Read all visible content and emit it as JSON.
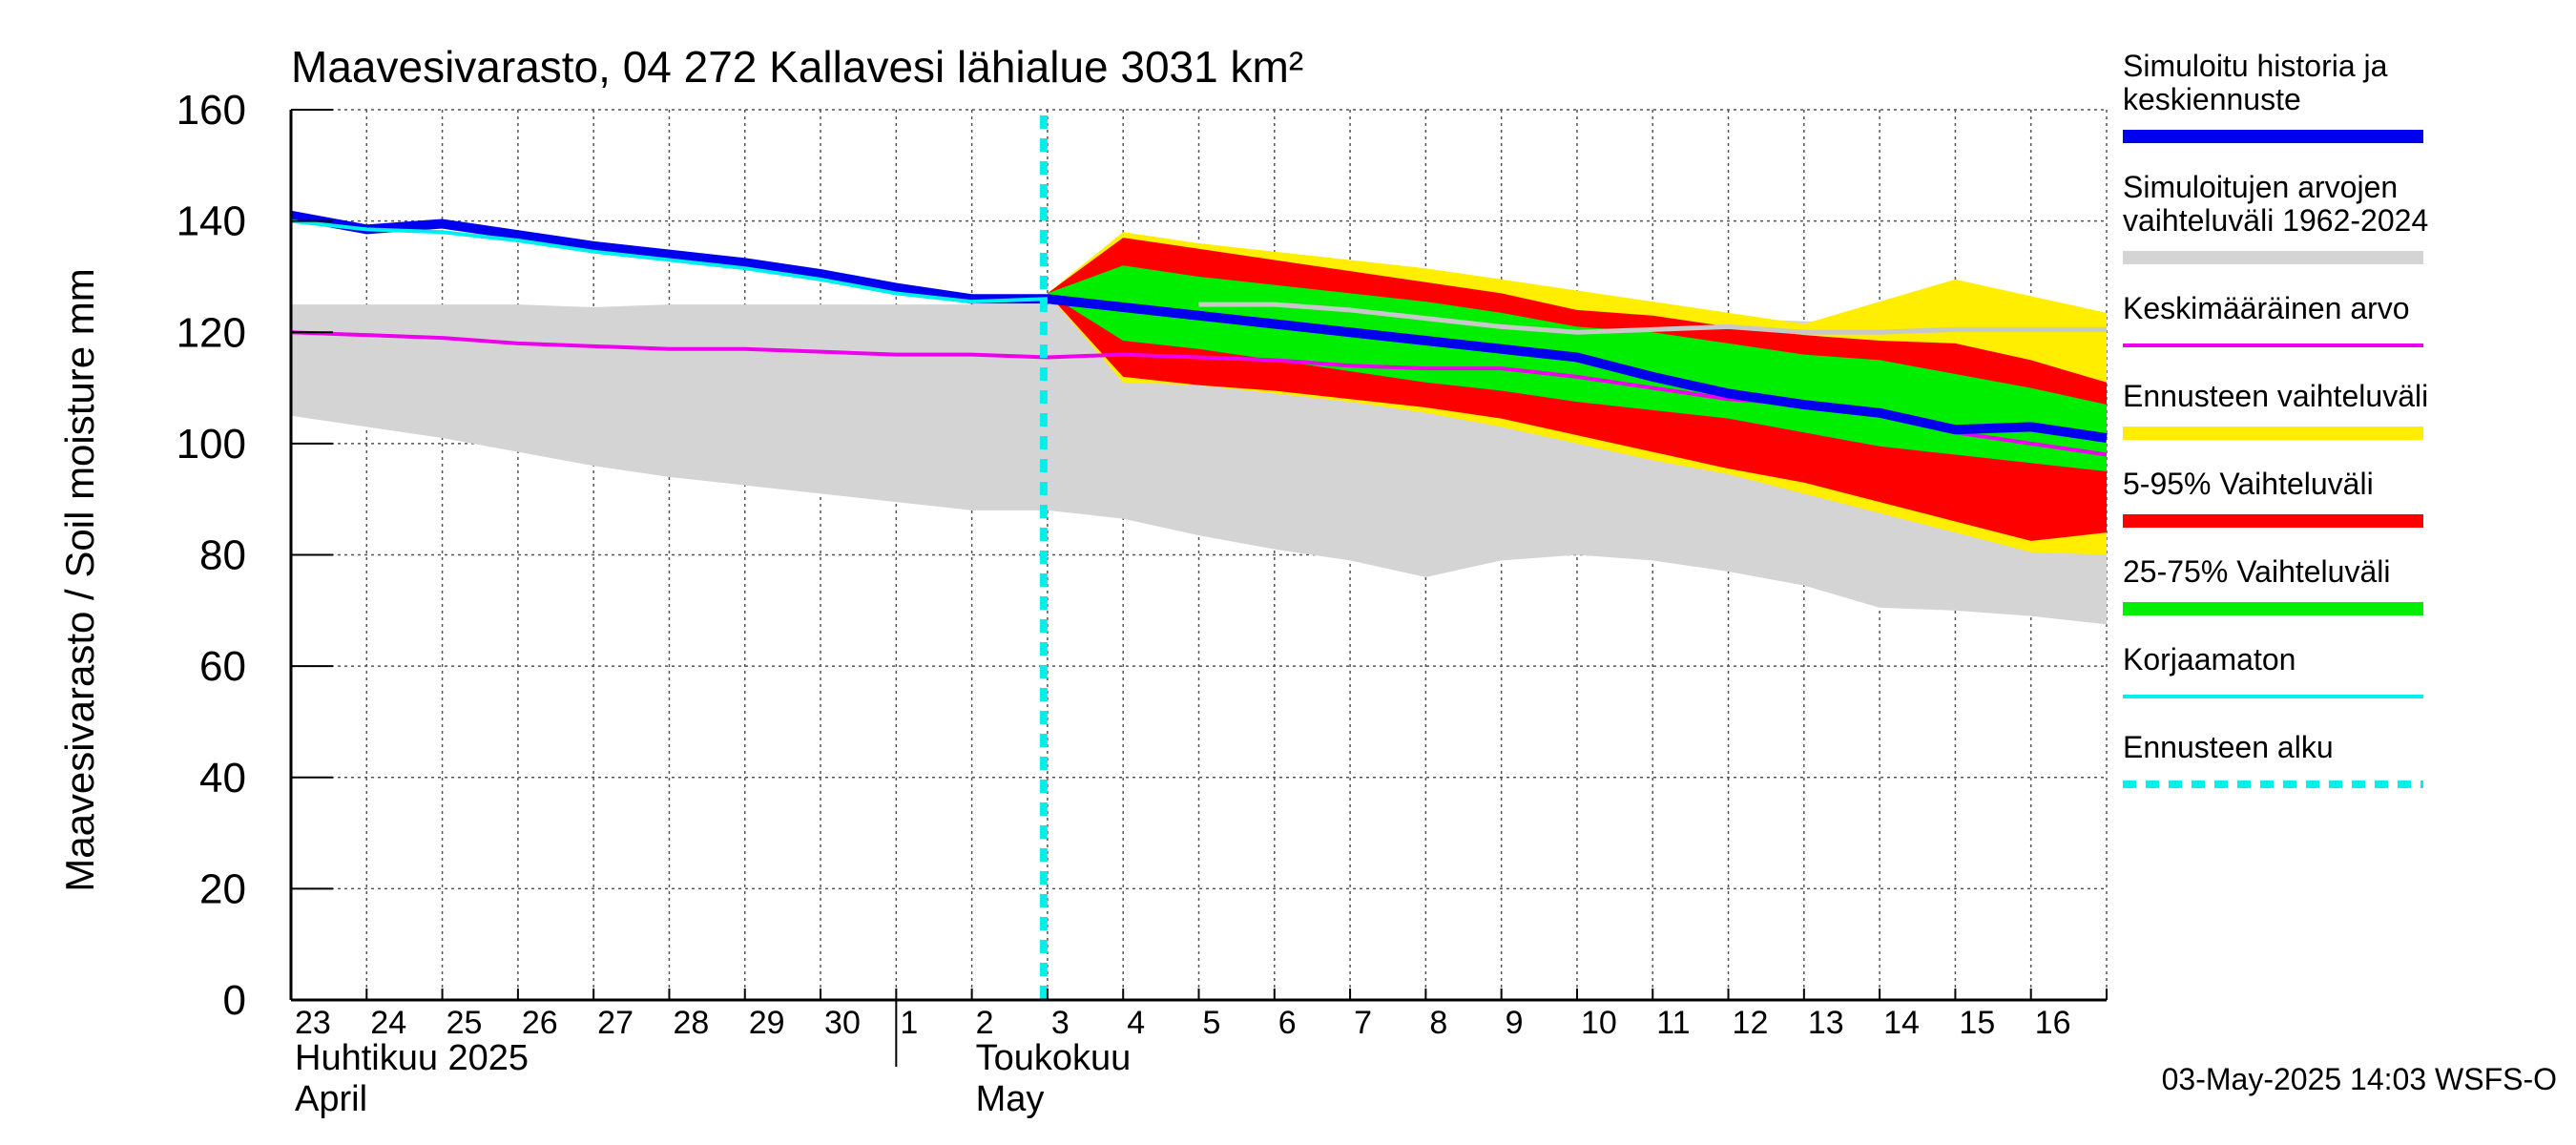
{
  "chart_data": {
    "type": "area",
    "title": "Maavesivarasto, 04 272 Kallavesi lähialue 3031 km²",
    "ylabel": "Maavesivarasto / Soil moisture   mm",
    "ylim": [
      0,
      160
    ],
    "yticks": [
      0,
      20,
      40,
      60,
      80,
      100,
      120,
      140,
      160
    ],
    "grid": true,
    "legend_placement": "right",
    "x_day_labels": [
      "23",
      "24",
      "25",
      "26",
      "27",
      "28",
      "29",
      "30",
      "1",
      "2",
      "3",
      "4",
      "5",
      "6",
      "7",
      "8",
      "9",
      "10",
      "11",
      "12",
      "13",
      "14",
      "15",
      "16"
    ],
    "month_labels": [
      {
        "line1": "Huhtikuu  2025",
        "line2": "April"
      },
      {
        "line1": "Toukokuu",
        "line2": "May"
      }
    ],
    "forecast_start": "2025-05-03",
    "dates": [
      "2025-04-23",
      "2025-04-24",
      "2025-04-25",
      "2025-04-26",
      "2025-04-27",
      "2025-04-28",
      "2025-04-29",
      "2025-04-30",
      "2025-05-01",
      "2025-05-02",
      "2025-05-03",
      "2025-05-04",
      "2025-05-05",
      "2025-05-06",
      "2025-05-07",
      "2025-05-08",
      "2025-05-09",
      "2025-05-10",
      "2025-05-11",
      "2025-05-12",
      "2025-05-13",
      "2025-05-14",
      "2025-05-15",
      "2025-05-16",
      "2025-05-17"
    ],
    "series": [
      {
        "name": "Simuloitujen arvojen vaihteluväli 1962-2024",
        "role": "range",
        "color": "#d4d4d4",
        "upper": [
          125,
          125,
          125,
          125,
          124.5,
          125,
          125,
          125,
          125,
          125,
          125,
          125,
          125,
          125,
          125,
          124.5,
          124.5,
          124.5,
          124,
          122.5,
          122,
          121.5,
          122,
          122,
          122
        ],
        "lower": [
          105,
          103,
          101,
          98.5,
          96,
          94,
          92.5,
          91,
          89.5,
          88,
          88,
          86.5,
          83.5,
          81,
          79,
          76,
          79,
          80,
          79,
          77,
          74.5,
          70.5,
          70,
          69,
          67.5
        ]
      },
      {
        "name": "Ennusteen vaihteluväli",
        "role": "range",
        "color": "#ffee00",
        "upper": [
          null,
          null,
          null,
          null,
          null,
          null,
          null,
          null,
          null,
          null,
          127,
          138,
          136,
          134.5,
          133,
          131.5,
          129.5,
          127.5,
          125.5,
          123.5,
          121.5,
          125.5,
          129.5,
          126.5,
          123.5
        ],
        "lower": [
          null,
          null,
          null,
          null,
          null,
          null,
          null,
          null,
          null,
          null,
          127,
          111,
          110.5,
          109,
          107.5,
          105.5,
          103,
          100,
          97,
          94.5,
          91,
          87.5,
          84,
          80.5,
          80
        ]
      },
      {
        "name": "5-95% Vaihteluväli",
        "role": "range",
        "color": "#ff0000",
        "upper": [
          null,
          null,
          null,
          null,
          null,
          null,
          null,
          null,
          null,
          null,
          127,
          137,
          135,
          133,
          131,
          129,
          127,
          124,
          123,
          121,
          119.5,
          118.5,
          118,
          115,
          111
        ],
        "lower": [
          null,
          null,
          null,
          null,
          null,
          null,
          null,
          null,
          null,
          null,
          127,
          112,
          110.5,
          109.5,
          108,
          106.5,
          104.5,
          101.5,
          98.5,
          95.5,
          93,
          89.5,
          86,
          82.5,
          84
        ]
      },
      {
        "name": "25-75% Vaihteluväli",
        "role": "range",
        "color": "#00ee00",
        "upper": [
          null,
          null,
          null,
          null,
          null,
          null,
          null,
          null,
          null,
          null,
          127,
          132,
          130,
          128.5,
          127,
          125.5,
          123.5,
          121,
          120,
          118,
          116,
          115,
          112.5,
          110,
          107
        ],
        "lower": [
          null,
          null,
          null,
          null,
          null,
          null,
          null,
          null,
          null,
          null,
          127,
          118.5,
          117,
          115,
          113,
          111,
          109.5,
          107.5,
          106,
          104.5,
          102,
          99.5,
          98,
          96.5,
          95
        ]
      },
      {
        "name": "Keskimääräinen arvo",
        "role": "line",
        "color": "#ee00ee",
        "width": 4,
        "values": [
          120,
          119.5,
          119,
          118,
          117.5,
          117,
          117,
          116.5,
          116,
          116,
          115.5,
          116,
          115.5,
          115,
          114,
          113.5,
          113.5,
          112,
          110,
          108,
          107,
          105,
          102,
          100,
          98
        ]
      },
      {
        "name": "Simuloitu historia ja keskiennuste",
        "role": "line",
        "color": "#0000ee",
        "width": 10,
        "values": [
          141,
          138.5,
          139.5,
          137.5,
          135.5,
          134,
          132.5,
          130.5,
          128,
          126,
          126,
          124.5,
          123,
          121.5,
          120,
          118.5,
          117,
          115.5,
          112,
          109,
          107,
          105.5,
          102.5,
          103,
          101
        ]
      },
      {
        "name": "Korjaamaton",
        "role": "line",
        "color": "#00eeee",
        "width": 4,
        "values": [
          140,
          138.5,
          138,
          136.5,
          134.5,
          133,
          131.5,
          129.5,
          127,
          125.5,
          126,
          null,
          null,
          null,
          null,
          null,
          null,
          null,
          null,
          null,
          null,
          null,
          null,
          null,
          null
        ]
      },
      {
        "name": "Ennusteen alku",
        "role": "vline",
        "color": "#00eeee",
        "x": 10
      }
    ],
    "sim_mean_line": {
      "color": "#c8c8c8",
      "values": [
        null,
        null,
        null,
        null,
        null,
        null,
        null,
        null,
        null,
        null,
        null,
        null,
        125,
        125,
        124,
        122.5,
        121,
        120,
        120.5,
        121,
        120,
        120,
        120.5,
        120.5,
        120.5
      ]
    }
  },
  "legend": [
    {
      "label": "Simuloitu historia ja\nkeskiennuste",
      "color": "#0000ee",
      "style": "solid"
    },
    {
      "label": "Simuloitujen arvojen\nvaihteluväli 1962-2024",
      "color": "#d4d4d4",
      "style": "solid"
    },
    {
      "label": "Keskimääräinen arvo",
      "color": "#ee00ee",
      "style": "thin"
    },
    {
      "label": "Ennusteen vaihteluväli",
      "color": "#ffee00",
      "style": "solid"
    },
    {
      "label": "5-95% Vaihteluväli",
      "color": "#ff0000",
      "style": "solid"
    },
    {
      "label": "25-75% Vaihteluväli",
      "color": "#00ee00",
      "style": "solid"
    },
    {
      "label": "Korjaamaton",
      "color": "#00eeee",
      "style": "thin"
    },
    {
      "label": "Ennusteen alku",
      "color": "#00eeee",
      "style": "dashed"
    }
  ],
  "footer": "03-May-2025 14:03 WSFS-O"
}
